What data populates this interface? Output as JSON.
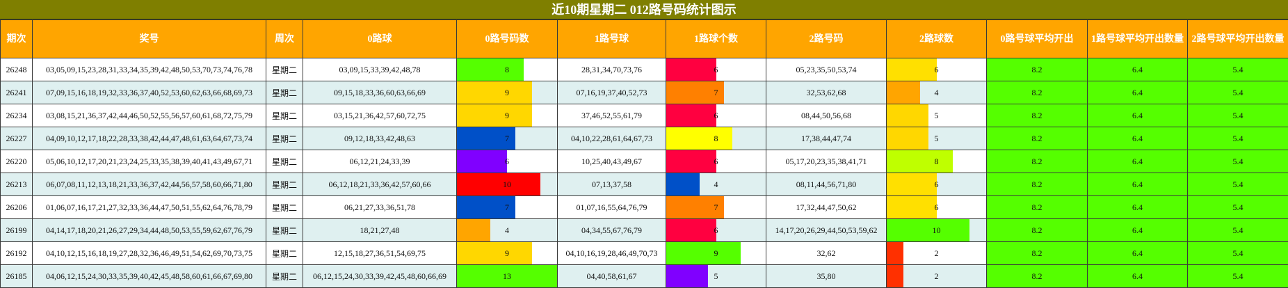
{
  "title": "近10期星期二 012路号码统计图示",
  "headers": [
    "期次",
    "奖号",
    "周次",
    "0路球",
    "0路号码数",
    "1路号球",
    "1路球个数",
    "2路号码",
    "2路球数",
    "0路号球平均开出",
    "1路号球平均开出数量",
    "2路号球平均开出数量"
  ],
  "rows": [
    {
      "issue": "26248",
      "numbers": "03,05,09,15,23,28,31,33,34,35,39,42,48,50,53,70,73,74,76,78",
      "weekday": "星期二",
      "r0": "03,09,15,33,39,42,48,78",
      "c0": 8,
      "c0_color": "#55ff00",
      "r1": "28,31,34,70,73,76",
      "c1": 6,
      "c1_color": "#ff0040",
      "r2": "05,23,35,50,53,74",
      "c2": 6,
      "c2_color": "#ffe000",
      "a0": "8.2",
      "a1": "6.4",
      "a2": "5.4"
    },
    {
      "issue": "26241",
      "numbers": "07,09,15,16,18,19,32,33,36,37,40,52,53,60,62,63,66,68,69,73",
      "weekday": "星期二",
      "r0": "09,15,18,33,36,60,63,66,69",
      "c0": 9,
      "c0_color": "#ffd700",
      "r1": "07,16,19,37,40,52,73",
      "c1": 7,
      "c1_color": "#ff8000",
      "r2": "32,53,62,68",
      "c2": 4,
      "c2_color": "#ffa500",
      "a0": "8.2",
      "a1": "6.4",
      "a2": "5.4"
    },
    {
      "issue": "26234",
      "numbers": "03,08,15,21,36,37,42,44,46,50,52,55,56,57,60,61,68,72,75,79",
      "weekday": "星期二",
      "r0": "03,15,21,36,42,57,60,72,75",
      "c0": 9,
      "c0_color": "#ffd700",
      "r1": "37,46,52,55,61,79",
      "c1": 6,
      "c1_color": "#ff0040",
      "r2": "08,44,50,56,68",
      "c2": 5,
      "c2_color": "#ffd700",
      "a0": "8.2",
      "a1": "6.4",
      "a2": "5.4"
    },
    {
      "issue": "26227",
      "numbers": "04,09,10,12,17,18,22,28,33,38,42,44,47,48,61,63,64,67,73,74",
      "weekday": "星期二",
      "r0": "09,12,18,33,42,48,63",
      "c0": 7,
      "c0_color": "#0050c8",
      "r1": "04,10,22,28,61,64,67,73",
      "c1": 8,
      "c1_color": "#ffff00",
      "r2": "17,38,44,47,74",
      "c2": 5,
      "c2_color": "#ffd700",
      "a0": "8.2",
      "a1": "6.4",
      "a2": "5.4"
    },
    {
      "issue": "26220",
      "numbers": "05,06,10,12,17,20,21,23,24,25,33,35,38,39,40,41,43,49,67,71",
      "weekday": "星期二",
      "r0": "06,12,21,24,33,39",
      "c0": 6,
      "c0_color": "#8000ff",
      "r1": "10,25,40,43,49,67",
      "c1": 6,
      "c1_color": "#ff0040",
      "r2": "05,17,20,23,35,38,41,71",
      "c2": 8,
      "c2_color": "#bfff00",
      "a0": "8.2",
      "a1": "6.4",
      "a2": "5.4"
    },
    {
      "issue": "26213",
      "numbers": "06,07,08,11,12,13,18,21,33,36,37,42,44,56,57,58,60,66,71,80",
      "weekday": "星期二",
      "r0": "06,12,18,21,33,36,42,57,60,66",
      "c0": 10,
      "c0_color": "#ff0000",
      "r1": "07,13,37,58",
      "c1": 4,
      "c1_color": "#0050c8",
      "r2": "08,11,44,56,71,80",
      "c2": 6,
      "c2_color": "#ffe000",
      "a0": "8.2",
      "a1": "6.4",
      "a2": "5.4"
    },
    {
      "issue": "26206",
      "numbers": "01,06,07,16,17,21,27,32,33,36,44,47,50,51,55,62,64,76,78,79",
      "weekday": "星期二",
      "r0": "06,21,27,33,36,51,78",
      "c0": 7,
      "c0_color": "#0050c8",
      "r1": "01,07,16,55,64,76,79",
      "c1": 7,
      "c1_color": "#ff8000",
      "r2": "17,32,44,47,50,62",
      "c2": 6,
      "c2_color": "#ffe000",
      "a0": "8.2",
      "a1": "6.4",
      "a2": "5.4"
    },
    {
      "issue": "26199",
      "numbers": "04,14,17,18,20,21,26,27,29,34,44,48,50,53,55,59,62,67,76,79",
      "weekday": "星期二",
      "r0": "18,21,27,48",
      "c0": 4,
      "c0_color": "#ffa500",
      "r1": "04,34,55,67,76,79",
      "c1": 6,
      "c1_color": "#ff0040",
      "r2": "14,17,20,26,29,44,50,53,59,62",
      "c2": 10,
      "c2_color": "#55ff00",
      "a0": "8.2",
      "a1": "6.4",
      "a2": "5.4"
    },
    {
      "issue": "26192",
      "numbers": "04,10,12,15,16,18,19,27,28,32,36,46,49,51,54,62,69,70,73,75",
      "weekday": "星期二",
      "r0": "12,15,18,27,36,51,54,69,75",
      "c0": 9,
      "c0_color": "#ffd700",
      "r1": "04,10,16,19,28,46,49,70,73",
      "c1": 9,
      "c1_color": "#55ff00",
      "r2": "32,62",
      "c2": 2,
      "c2_color": "#ff3000",
      "a0": "8.2",
      "a1": "6.4",
      "a2": "5.4"
    },
    {
      "issue": "26185",
      "numbers": "04,06,12,15,24,30,33,35,39,40,42,45,48,58,60,61,66,67,69,80",
      "weekday": "星期二",
      "r0": "06,12,15,24,30,33,39,42,45,48,60,66,69",
      "c0": 13,
      "c0_color": "#55ff00",
      "r1": "04,40,58,61,67",
      "c1": 5,
      "c1_color": "#8000ff",
      "r2": "35,80",
      "c2": 2,
      "c2_color": "#ff3000",
      "a0": "8.2",
      "a1": "6.4",
      "a2": "5.4"
    }
  ]
}
